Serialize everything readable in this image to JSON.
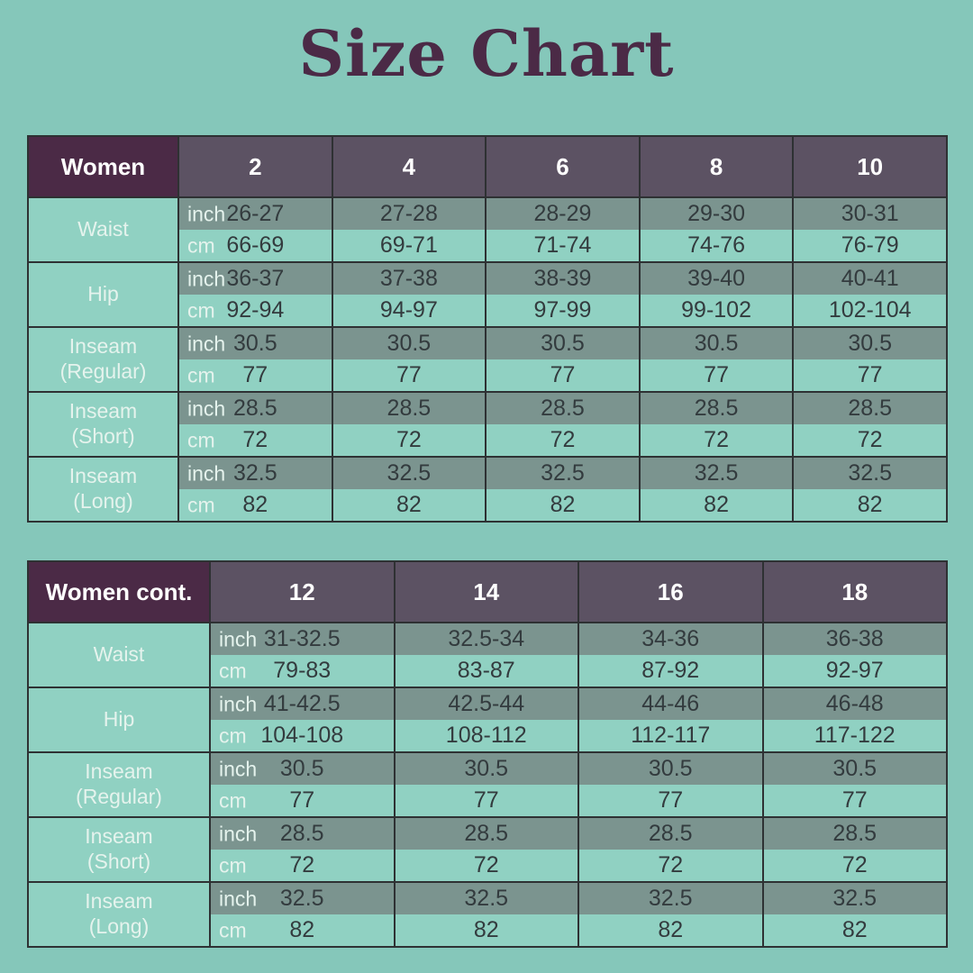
{
  "title": "Size Chart",
  "unit_labels": {
    "inch": "inch",
    "cm": "cm"
  },
  "chart_data": [
    {
      "type": "table",
      "title": "Women",
      "columns": [
        "2",
        "4",
        "6",
        "8",
        "10"
      ],
      "rows": [
        {
          "label": [
            "Waist"
          ],
          "inch": [
            "26-27",
            "27-28",
            "28-29",
            "29-30",
            "30-31"
          ],
          "cm": [
            "66-69",
            "69-71",
            "71-74",
            "74-76",
            "76-79"
          ]
        },
        {
          "label": [
            "Hip"
          ],
          "inch": [
            "36-37",
            "37-38",
            "38-39",
            "39-40",
            "40-41"
          ],
          "cm": [
            "92-94",
            "94-97",
            "97-99",
            "99-102",
            "102-104"
          ]
        },
        {
          "label": [
            "Inseam",
            "(Regular)"
          ],
          "inch": [
            "30.5",
            "30.5",
            "30.5",
            "30.5",
            "30.5"
          ],
          "cm": [
            "77",
            "77",
            "77",
            "77",
            "77"
          ]
        },
        {
          "label": [
            "Inseam",
            "(Short)"
          ],
          "inch": [
            "28.5",
            "28.5",
            "28.5",
            "28.5",
            "28.5"
          ],
          "cm": [
            "72",
            "72",
            "72",
            "72",
            "72"
          ]
        },
        {
          "label": [
            "Inseam",
            "(Long)"
          ],
          "inch": [
            "32.5",
            "32.5",
            "32.5",
            "32.5",
            "32.5"
          ],
          "cm": [
            "82",
            "82",
            "82",
            "82",
            "82"
          ]
        }
      ]
    },
    {
      "type": "table",
      "title": "Women cont.",
      "columns": [
        "12",
        "14",
        "16",
        "18"
      ],
      "rows": [
        {
          "label": [
            "Waist"
          ],
          "inch": [
            "31-32.5",
            "32.5-34",
            "34-36",
            "36-38"
          ],
          "cm": [
            "79-83",
            "83-87",
            "87-92",
            "92-97"
          ]
        },
        {
          "label": [
            "Hip"
          ],
          "inch": [
            "41-42.5",
            "42.5-44",
            "44-46",
            "46-48"
          ],
          "cm": [
            "104-108",
            "108-112",
            "112-117",
            "117-122"
          ]
        },
        {
          "label": [
            "Inseam",
            "(Regular)"
          ],
          "inch": [
            "30.5",
            "30.5",
            "30.5",
            "30.5"
          ],
          "cm": [
            "77",
            "77",
            "77",
            "77"
          ]
        },
        {
          "label": [
            "Inseam",
            "(Short)"
          ],
          "inch": [
            "28.5",
            "28.5",
            "28.5",
            "28.5"
          ],
          "cm": [
            "72",
            "72",
            "72",
            "72"
          ]
        },
        {
          "label": [
            "Inseam",
            "(Long)"
          ],
          "inch": [
            "32.5",
            "32.5",
            "32.5",
            "32.5"
          ],
          "cm": [
            "82",
            "82",
            "82",
            "82"
          ]
        }
      ]
    }
  ],
  "colors": {
    "background": "#85C7BA",
    "title_color": "#4B2A46",
    "header_label_bg": "#4B2A46",
    "header_size_bg": "#5C5263",
    "inch_row_bg": "#7B948F",
    "cm_row_bg": "#90D1C2",
    "label_cell_bg": "#90D1C2",
    "border_color": "#2E3133",
    "header_text": "#FFFFFF",
    "label_text": "#E5F3ED",
    "value_text": "#333B3E"
  }
}
